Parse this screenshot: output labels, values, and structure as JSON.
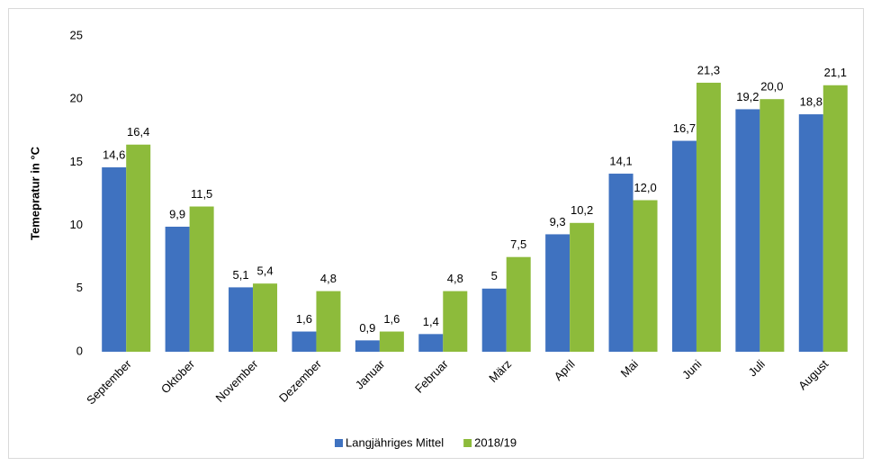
{
  "chart_data": {
    "type": "bar",
    "y_label": "Temepratur in °C",
    "categories": [
      "September",
      "Oktober",
      "November",
      "Dezember",
      "Januar",
      "Februar",
      "März",
      "April",
      "Mai",
      "Juni",
      "Juli",
      "August"
    ],
    "series": [
      {
        "name": "Langjähriges Mittel",
        "color": "#3f72c0",
        "values": [
          14.6,
          9.9,
          5.1,
          1.6,
          0.9,
          1.4,
          5,
          9.3,
          14.1,
          16.7,
          19.2,
          18.8
        ],
        "value_labels": [
          "14,6",
          "9,9",
          "5,1",
          "1,6",
          "0,9",
          "1,4",
          "5",
          "9,3",
          "14,1",
          "16,7",
          "19,2",
          "18,8"
        ]
      },
      {
        "name": "2018/19",
        "color": "#8dbb3b",
        "values": [
          16.4,
          11.5,
          5.4,
          4.8,
          1.6,
          4.8,
          7.5,
          10.2,
          12.0,
          21.3,
          20.0,
          21.1
        ],
        "value_labels": [
          "16,4",
          "11,5",
          "5,4",
          "4,8",
          "1,6",
          "4,8",
          "7,5",
          "10,2",
          "12,0",
          "21,3",
          "20,0",
          "21,1"
        ]
      }
    ],
    "ylim": [
      0,
      25
    ],
    "yticks": [
      0,
      5,
      10,
      15,
      20,
      25
    ],
    "grid": false,
    "legend": "bottom"
  }
}
